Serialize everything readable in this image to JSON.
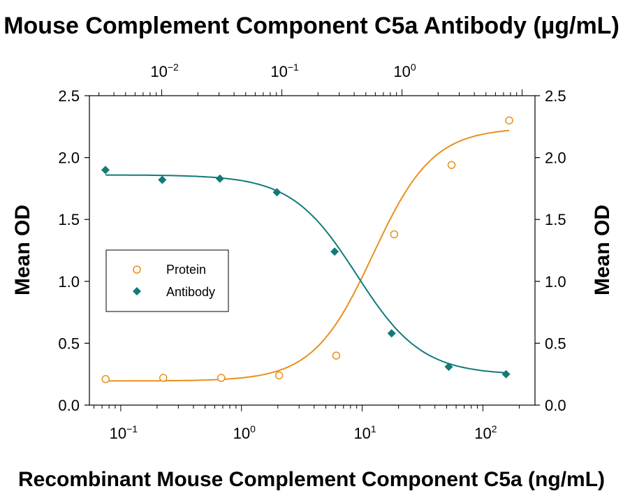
{
  "chart_data": {
    "type": "scatter",
    "title": "Mouse Complement Component C5a Antibody (µg/mL)",
    "xlabel": "Recombinant Mouse Complement Component C5a (ng/mL)",
    "ylabel": "Mean OD",
    "ylabel_right": "Mean OD",
    "x_scale": "log",
    "xlim": [
      0.055,
      270
    ],
    "ylim": [
      0,
      2.5
    ],
    "yticks": [
      "0.0",
      "0.5",
      "1.0",
      "1.5",
      "2.0",
      "2.5"
    ],
    "xticks_bottom": [
      {
        "base": "10",
        "exp": "−1",
        "value": 0.1
      },
      {
        "base": "10",
        "exp": "0",
        "value": 1
      },
      {
        "base": "10",
        "exp": "1",
        "value": 10
      },
      {
        "base": "10",
        "exp": "2",
        "value": 100
      }
    ],
    "xticks_top": [
      {
        "base": "10",
        "exp": "−2",
        "value": 0.01
      },
      {
        "base": "10",
        "exp": "−1",
        "value": 0.1
      },
      {
        "base": "10",
        "exp": "0",
        "value": 1
      }
    ],
    "top_axis_range": [
      0.0025,
      12.8
    ],
    "legend_position": "left-middle",
    "grid": false,
    "series": [
      {
        "name": "Protein",
        "marker": "open-circle",
        "color": "#e8901c",
        "axis": "bottom",
        "x": [
          0.075,
          0.225,
          0.68,
          2.05,
          6.1,
          18.4,
          55,
          165
        ],
        "y": [
          0.21,
          0.22,
          0.22,
          0.24,
          0.4,
          1.38,
          1.94,
          2.3
        ]
      },
      {
        "name": "Antibody",
        "marker": "filled-diamond",
        "color": "#127a78",
        "axis": "top",
        "x": [
          0.0034,
          0.0101,
          0.0305,
          0.091,
          0.275,
          0.82,
          2.45,
          7.35
        ],
        "y": [
          1.9,
          1.82,
          1.83,
          1.72,
          1.24,
          0.58,
          0.31,
          0.25
        ]
      }
    ]
  }
}
